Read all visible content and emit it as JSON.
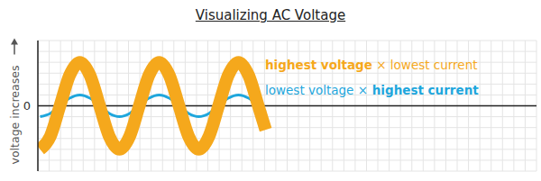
{
  "chart_data": {
    "type": "line",
    "title": "Visualizing AC Voltage",
    "y_label": "voltage increases",
    "x": [
      0.2,
      1.1,
      1.95,
      2.8,
      3.7,
      4.6,
      5.45,
      6.3,
      7.2,
      8.1,
      8.95,
      9.8,
      10.7,
      11.6,
      12.45,
      13.3,
      14.2,
      15.1,
      15.95,
      16.8,
      17.7,
      18.6,
      19.45,
      20.1
    ],
    "series": [
      {
        "color": "#f5a81c",
        "values": [
          -4,
          -2.8,
          0,
          2.8,
          4,
          2.8,
          0,
          -2.8,
          -4,
          -2.8,
          0,
          2.8,
          4,
          2.8,
          0,
          -2.8,
          -4,
          -2.8,
          0,
          2.8,
          4,
          2.8,
          0,
          -2.2
        ]
      },
      {
        "color": "#1ea6dc",
        "values": [
          -1,
          -0.7,
          0,
          0.7,
          1,
          0.7,
          0,
          -0.7,
          -1,
          -0.7,
          0,
          0.7,
          1,
          0.7,
          0,
          -0.7,
          -1,
          -0.7,
          0,
          0.7,
          1,
          0.7,
          0,
          -0.55
        ]
      }
    ],
    "xlim": [
      0,
      44
    ],
    "xticks": [],
    "ylim": [
      -6,
      6
    ],
    "yticks": [
      0
    ],
    "tick_labels": "y",
    "grid": true,
    "annotations": [
      {
        "parts": [
          "highest voltage",
          "×",
          "lowest current"
        ],
        "color": "#f5a81c"
      },
      {
        "parts": [
          "lowest voltage",
          "×",
          "highest current"
        ],
        "color": "#1ea6dc"
      }
    ]
  }
}
